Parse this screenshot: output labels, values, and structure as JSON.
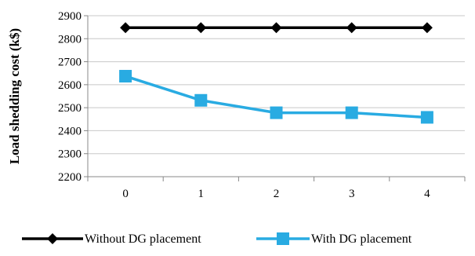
{
  "chart_data": {
    "type": "line",
    "title": "",
    "xlabel": "",
    "ylabel": "Load shedding cost (k$)",
    "categories": [
      "0",
      "1",
      "2",
      "3",
      "4"
    ],
    "ylim": [
      2200,
      2900
    ],
    "yticks": [
      2200,
      2300,
      2400,
      2500,
      2600,
      2700,
      2800,
      2900
    ],
    "grid": true,
    "legend_position": "bottom",
    "series": [
      {
        "name": "Without DG placement",
        "values": [
          2848,
          2848,
          2848,
          2848,
          2848
        ],
        "color": "#000000",
        "marker": "diamond"
      },
      {
        "name": "With DG placement",
        "values": [
          2637,
          2532,
          2478,
          2478,
          2458
        ],
        "color": "#29ABE2",
        "marker": "square"
      }
    ]
  }
}
